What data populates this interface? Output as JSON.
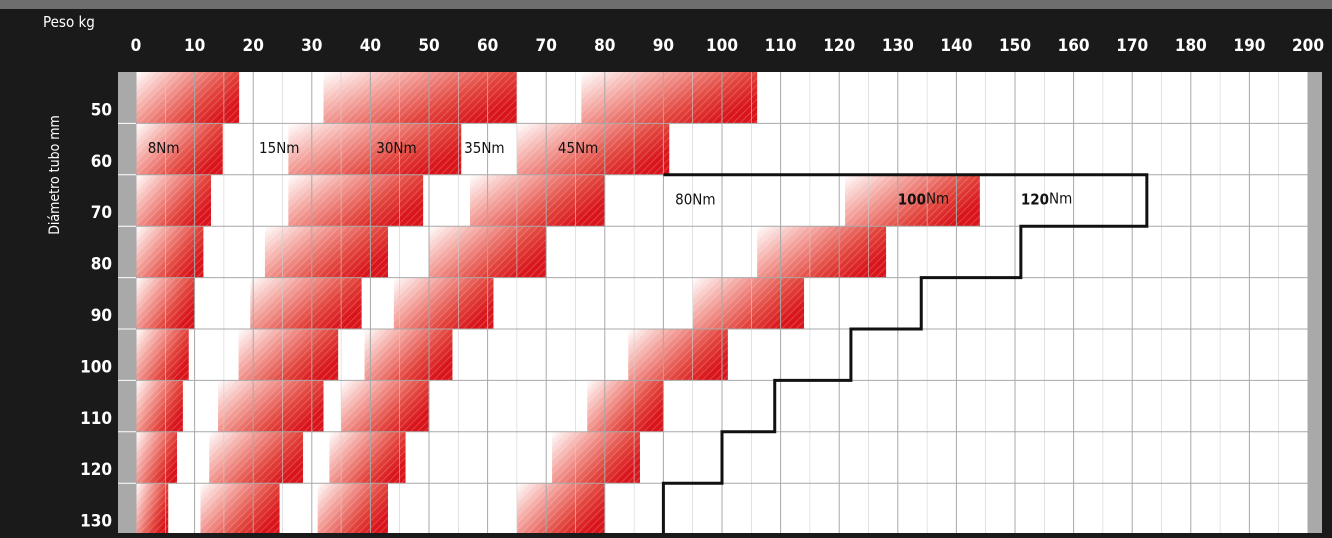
{
  "chart_data": {
    "type": "heatmap",
    "corner_label": "Peso kg",
    "y_axis_title": "Diámetro tubo mm",
    "x_ticks": [
      "0",
      "10",
      "20",
      "30",
      "40",
      "50",
      "60",
      "70",
      "80",
      "90",
      "100",
      "110",
      "120",
      "130",
      "140",
      "150",
      "160",
      "170",
      "180",
      "190",
      "200"
    ],
    "y_ticks": [
      "50",
      "60",
      "70",
      "80",
      "90",
      "100",
      "110",
      "120",
      "130"
    ],
    "xlim": [
      0,
      200
    ],
    "y_rows": [
      50,
      60,
      70,
      80,
      90,
      100,
      110,
      120,
      130
    ],
    "torque_labels": [
      {
        "id": "t8",
        "text": "8Nm",
        "row": 60,
        "x": 2,
        "bold": false
      },
      {
        "id": "t15",
        "text": "15Nm",
        "row": 60,
        "x": 21,
        "bold": false
      },
      {
        "id": "t30",
        "text": "30Nm",
        "row": 60,
        "x": 41,
        "bold": false
      },
      {
        "id": "t35",
        "text": "35Nm",
        "row": 60,
        "x": 56,
        "bold": false
      },
      {
        "id": "t45",
        "text": "45Nm",
        "row": 60,
        "x": 72,
        "bold": false
      },
      {
        "id": "t80",
        "text": "80Nm",
        "row": 70,
        "x": 92,
        "bold": false
      },
      {
        "id": "t100",
        "text": "100",
        "unit": "Nm",
        "row": 70,
        "x": 130,
        "bold": true
      },
      {
        "id": "t120",
        "text": "120",
        "unit": "Nm",
        "row": 70,
        "x": 151,
        "bold": true
      }
    ],
    "gradient_bands": [
      {
        "name": "band-8Nm",
        "points": [
          [
            0,
            17.6
          ],
          [
            0,
            14.8
          ],
          [
            0,
            12.8
          ],
          [
            0,
            11.5
          ],
          [
            0,
            10
          ],
          [
            0,
            9
          ],
          [
            0,
            8
          ],
          [
            0,
            7
          ],
          [
            0,
            5.5
          ]
        ]
      },
      {
        "name": "band-15Nm",
        "points": [
          [
            null,
            null
          ],
          [
            null,
            null
          ],
          [
            null,
            null
          ],
          [
            null,
            null
          ],
          [
            null,
            null
          ],
          [
            null,
            null
          ],
          [
            null,
            null
          ],
          [
            null,
            null
          ],
          [
            null,
            null
          ]
        ]
      }
    ],
    "bars": [
      {
        "row": 50,
        "x0": 0,
        "x1": 17.6
      },
      {
        "row": 50,
        "x0": 32,
        "x1": 65
      },
      {
        "row": 50,
        "x0": 76,
        "x1": 106
      },
      {
        "row": 60,
        "x0": 0,
        "x1": 14.8
      },
      {
        "row": 60,
        "x0": 26,
        "x1": 55.5
      },
      {
        "row": 60,
        "x0": 65,
        "x1": 91
      },
      {
        "row": 70,
        "x0": 0,
        "x1": 12.8
      },
      {
        "row": 70,
        "x0": 26,
        "x1": 49
      },
      {
        "row": 70,
        "x0": 57,
        "x1": 80
      },
      {
        "row": 70,
        "x0": 121,
        "x1": 144
      },
      {
        "row": 80,
        "x0": 0,
        "x1": 11.5
      },
      {
        "row": 80,
        "x0": 22,
        "x1": 43
      },
      {
        "row": 80,
        "x0": 50,
        "x1": 70
      },
      {
        "row": 80,
        "x0": 106,
        "x1": 128
      },
      {
        "row": 90,
        "x0": 0,
        "x1": 10
      },
      {
        "row": 90,
        "x0": 19.5,
        "x1": 38.5
      },
      {
        "row": 90,
        "x0": 44,
        "x1": 61
      },
      {
        "row": 90,
        "x0": 95,
        "x1": 114
      },
      {
        "row": 100,
        "x0": 0,
        "x1": 9
      },
      {
        "row": 100,
        "x0": 17.5,
        "x1": 34.5
      },
      {
        "row": 100,
        "x0": 39,
        "x1": 54
      },
      {
        "row": 100,
        "x0": 84,
        "x1": 101
      },
      {
        "row": 110,
        "x0": 0,
        "x1": 8
      },
      {
        "row": 110,
        "x0": 14,
        "x1": 32
      },
      {
        "row": 110,
        "x0": 35,
        "x1": 50
      },
      {
        "row": 110,
        "x0": 77,
        "x1": 90
      },
      {
        "row": 120,
        "x0": 0,
        "x1": 7
      },
      {
        "row": 120,
        "x0": 12.5,
        "x1": 28.5
      },
      {
        "row": 120,
        "x0": 33,
        "x1": 46
      },
      {
        "row": 120,
        "x0": 71,
        "x1": 86
      },
      {
        "row": 130,
        "x0": 0,
        "x1": 5.5
      },
      {
        "row": 130,
        "x0": 11,
        "x1": 24.5
      },
      {
        "row": 130,
        "x0": 31,
        "x1": 43
      },
      {
        "row": 130,
        "x0": 65,
        "x1": 80
      }
    ],
    "staircase_outline": [
      [
        90,
        60
      ],
      [
        172.5,
        60
      ],
      [
        172.5,
        70
      ],
      [
        151,
        70
      ],
      [
        151,
        80
      ],
      [
        134,
        80
      ],
      [
        134,
        90
      ],
      [
        122,
        90
      ],
      [
        122,
        100
      ],
      [
        109,
        100
      ],
      [
        109,
        110
      ],
      [
        100,
        110
      ],
      [
        100,
        120
      ],
      [
        90,
        120
      ],
      [
        90,
        130
      ]
    ],
    "grid": true,
    "colors": {
      "accent": "#dc1c23",
      "background": "#1a1a1a",
      "header": "#6e6e6e",
      "grid": "#aaaaaa",
      "side": "#a9a9a9"
    }
  }
}
